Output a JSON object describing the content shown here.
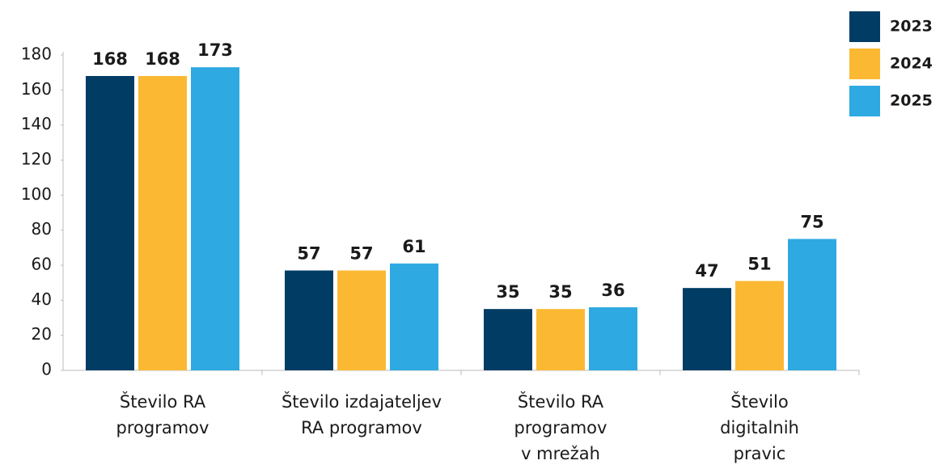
{
  "chart_data": {
    "type": "bar",
    "categories": [
      [
        "Število RA",
        "programov"
      ],
      [
        "Število izdajateljev",
        "RA programov"
      ],
      [
        "Število RA",
        "programov",
        "v mrežah"
      ],
      [
        "Število",
        "digitalnih",
        "pravic"
      ]
    ],
    "series": [
      {
        "name": "2023",
        "color": "#013c64",
        "values": [
          168,
          57,
          35,
          47
        ]
      },
      {
        "name": "2024",
        "color": "#fbb933",
        "values": [
          168,
          57,
          35,
          51
        ]
      },
      {
        "name": "2025",
        "color": "#2ea9e1",
        "values": [
          173,
          61,
          36,
          75
        ]
      }
    ],
    "ylim": [
      0,
      180
    ],
    "yticks": [
      0,
      20,
      40,
      60,
      80,
      100,
      120,
      140,
      160,
      180
    ],
    "legend": "top-right"
  }
}
